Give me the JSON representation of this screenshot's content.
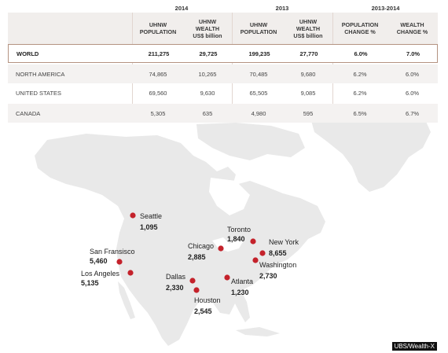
{
  "chart_data": {
    "type": "table",
    "column_groups": [
      {
        "label": "2014"
      },
      {
        "label": "2013"
      },
      {
        "label": "2013-2014"
      }
    ],
    "columns": [
      "",
      "UHNW\nPOPULATION",
      "UHNW\nWEALTH\nUS$ billion",
      "UHNW\nPOPULATION",
      "UHNW\nWEALTH\nUS$ billion",
      "POPULATION\nCHANGE %",
      "WEALTH\nCHANGE %"
    ],
    "rows": [
      {
        "region": "WORLD",
        "values": [
          "211,275",
          "29,725",
          "199,235",
          "27,770",
          "6.0%",
          "7.0%"
        ]
      },
      {
        "region": "NORTH AMERICA",
        "values": [
          "74,865",
          "10,265",
          "70,485",
          "9,680",
          "6.2%",
          "6.0%"
        ]
      },
      {
        "region": "UNITED STATES",
        "values": [
          "69,560",
          "9,630",
          "65,505",
          "9,085",
          "6.2%",
          "6.0%"
        ]
      },
      {
        "region": "CANADA",
        "values": [
          "5,305",
          "635",
          "4,980",
          "595",
          "6.5%",
          "6.7%"
        ]
      }
    ],
    "map": {
      "marker_color": "#c4222b",
      "cities": [
        {
          "name": "Seattle",
          "value": "1,095"
        },
        {
          "name": "San Fransisco",
          "value": "5,460"
        },
        {
          "name": "Los Angeles",
          "value": "5,135"
        },
        {
          "name": "Chicago",
          "value": "2,885"
        },
        {
          "name": "Toronto",
          "value": "1,840"
        },
        {
          "name": "New York",
          "value": "8,655"
        },
        {
          "name": "Washington",
          "value": "2,730"
        },
        {
          "name": "Dallas",
          "value": "2,330"
        },
        {
          "name": "Atlanta",
          "value": "1,230"
        },
        {
          "name": "Houston",
          "value": "2,545"
        }
      ]
    }
  },
  "credit": "UBS/Wealth-X",
  "colors": {
    "land": "#e9e9e9",
    "header_bg": "#f1eeec",
    "world_border": "#b49381"
  }
}
